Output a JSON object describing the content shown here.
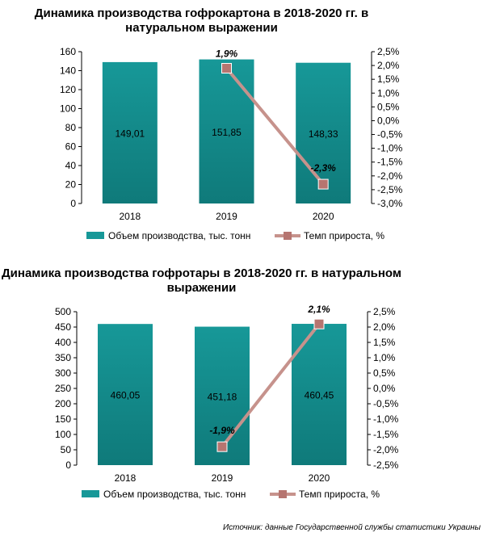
{
  "colors": {
    "bar": "#179898",
    "bar_dark": "#0f7a7a",
    "line": "#c6928c",
    "marker": "#b67570"
  },
  "charts": [
    {
      "title": "Динамика производства гофрокартона в 2018-2020 гг. в натуральном выражении"
    },
    {
      "title": "Динамика производства гофротары в 2018-2020 гг. в натуральном выражении"
    }
  ],
  "chart_data": [
    {
      "type": "bar",
      "title": "Динамика производства гофрокартона в 2018-2020 гг. в натуральном выражении",
      "categories": [
        "2018",
        "2019",
        "2020"
      ],
      "series": [
        {
          "name": "Объем производства, тыс. тонн",
          "type": "bar",
          "axis": "left",
          "values": [
            149.01,
            151.85,
            148.33
          ],
          "labels": [
            "149,01",
            "151,85",
            "148,33"
          ]
        },
        {
          "name": "Темп прироста, %",
          "type": "line",
          "axis": "right",
          "x": [
            "2019",
            "2020"
          ],
          "values": [
            1.9,
            -2.3
          ],
          "labels": [
            "1,9%",
            "-2,3%"
          ]
        }
      ],
      "ylim": [
        0,
        160
      ],
      "yticks": [
        "0",
        "20",
        "40",
        "60",
        "80",
        "100",
        "120",
        "140",
        "160"
      ],
      "y2lim": [
        -3.0,
        2.5
      ],
      "y2ticks": [
        "2,5%",
        "2,0%",
        "1,5%",
        "1,0%",
        "0,5%",
        "0,0%",
        "-0,5%",
        "-1,0%",
        "-1,5%",
        "-2,0%",
        "-2,5%",
        "-3,0%"
      ],
      "legend": "bottom",
      "grid": false
    },
    {
      "type": "bar",
      "title": "Динамика производства гофротары в 2018-2020 гг. в натуральном выражении",
      "categories": [
        "2018",
        "2019",
        "2020"
      ],
      "series": [
        {
          "name": "Объем производства, тыс. тонн",
          "type": "bar",
          "axis": "left",
          "values": [
            460.05,
            451.18,
            460.45
          ],
          "labels": [
            "460,05",
            "451,18",
            "460,45"
          ]
        },
        {
          "name": "Темп прироста, %",
          "type": "line",
          "axis": "right",
          "x": [
            "2019",
            "2020"
          ],
          "values": [
            -1.9,
            2.1
          ],
          "labels": [
            "-1,9%",
            "2,1%"
          ]
        }
      ],
      "ylim": [
        0,
        500
      ],
      "yticks": [
        "0",
        "50",
        "100",
        "150",
        "200",
        "250",
        "300",
        "350",
        "400",
        "450",
        "500"
      ],
      "y2lim": [
        -2.5,
        2.5
      ],
      "y2ticks": [
        "2,5%",
        "2,0%",
        "1,5%",
        "1,0%",
        "0,5%",
        "0,0%",
        "-0,5%",
        "-1,0%",
        "-1,5%",
        "-2,0%",
        "-2,5%"
      ],
      "legend": "bottom",
      "grid": false
    }
  ],
  "source": "Источник: данные Государственной службы статистики Украины"
}
